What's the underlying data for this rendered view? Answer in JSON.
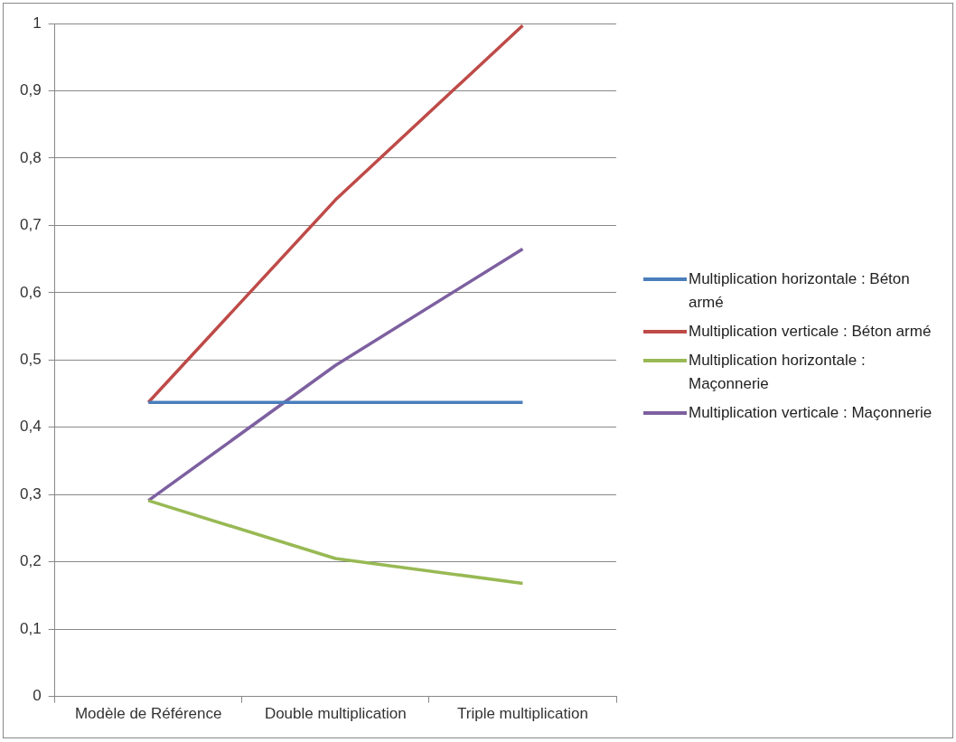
{
  "chart_data": {
    "type": "line",
    "categories": [
      "Modèle de Référence",
      "Double multiplication",
      "Triple multiplication"
    ],
    "series": [
      {
        "name": "Multiplication horizontale : Béton armé",
        "color": "#4a7ebb",
        "values": [
          0.437,
          0.437,
          0.437
        ]
      },
      {
        "name": "Multiplication verticale : Béton armé",
        "color": "#be4b48",
        "values": [
          0.437,
          0.738,
          0.997
        ]
      },
      {
        "name": "Multiplication horizontale : Maçonnerie",
        "color": "#98b954",
        "values": [
          0.291,
          0.205,
          0.168
        ]
      },
      {
        "name": "Multiplication verticale : Maçonnerie",
        "color": "#7d60a0",
        "values": [
          0.291,
          0.492,
          0.665
        ]
      }
    ],
    "ylim": [
      0,
      1
    ],
    "yticks": [
      0,
      {
        "value": 0.1,
        "label": "0,1"
      },
      {
        "value": 0.2,
        "label": "0,2"
      },
      {
        "value": 0.3,
        "label": "0,3"
      },
      {
        "value": 0.4,
        "label": "0,4"
      },
      {
        "value": 0.5,
        "label": "0,5"
      },
      {
        "value": 0.6,
        "label": "0,6"
      },
      {
        "value": 0.7,
        "label": "0,7"
      },
      {
        "value": 0.8,
        "label": "0,8"
      },
      {
        "value": 0.9,
        "label": "0,9"
      },
      1
    ],
    "grid": "y",
    "legend": "right",
    "marker": "none",
    "line_style": "solid"
  }
}
